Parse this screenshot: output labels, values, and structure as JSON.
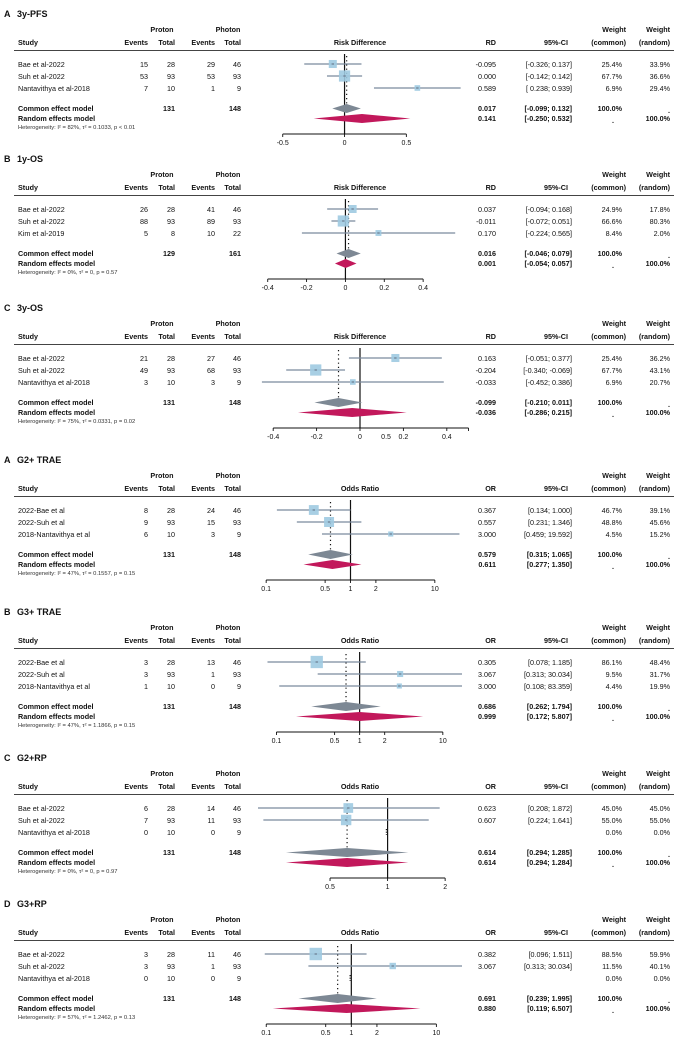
{
  "headers": {
    "study": "Study",
    "events": "Events",
    "total": "Total",
    "ci": "95%-CI",
    "weight": "Weight",
    "common": "(common)",
    "random": "(random)"
  },
  "chart_data": [
    {
      "type": "forest",
      "letter": "A",
      "title": "3y-PFS",
      "arm1": "Proton",
      "arm2": "Photon",
      "measure_label": "Risk Difference",
      "measure_short": "RD",
      "scale": "linear",
      "xlim": [
        -0.7,
        0.95
      ],
      "ref": 0,
      "ticks": [
        "-0.5",
        "0",
        "0.5"
      ],
      "tick_values": [
        -0.5,
        0,
        0.5
      ],
      "rows": [
        {
          "study": "Bae et al-2022",
          "e1": "15",
          "n1": "28",
          "e2": "29",
          "n2": "46",
          "est": -0.095,
          "lo": -0.326,
          "hi": 0.137,
          "est_txt": "-0.095",
          "ci_txt": "[-0.326; 0.137]",
          "wc": "25.4%",
          "wr": "33.9%",
          "w": 25.4
        },
        {
          "study": "Suh et al-2022",
          "e1": "53",
          "n1": "93",
          "e2": "53",
          "n2": "93",
          "est": 0.0,
          "lo": -0.142,
          "hi": 0.142,
          "est_txt": "0.000",
          "ci_txt": "[-0.142; 0.142]",
          "wc": "67.7%",
          "wr": "36.6%",
          "w": 67.7
        },
        {
          "study": "Nantavithya et al-2018",
          "e1": "7",
          "n1": "10",
          "e2": "1",
          "n2": "9",
          "est": 0.589,
          "lo": 0.238,
          "hi": 0.939,
          "est_txt": "0.589",
          "ci_txt": "[ 0.238; 0.939]",
          "wc": "6.9%",
          "wr": "29.4%",
          "w": 6.9
        }
      ],
      "common": {
        "label": "Common effect model",
        "n1": "131",
        "n2": "148",
        "est": 0.017,
        "lo": -0.099,
        "hi": 0.132,
        "est_txt": "0.017",
        "ci_txt": "[-0.099; 0.132]",
        "wc": "100.0%",
        "wr": "."
      },
      "random": {
        "label": "Random effects model",
        "est": 0.141,
        "lo": -0.25,
        "hi": 0.532,
        "est_txt": "0.141",
        "ci_txt": "[-0.250; 0.532]",
        "wc": ".",
        "wr": "100.0%"
      },
      "heterogeneity": "Heterogeneity: I² = 82%, τ² = 0.1033, p < 0.01"
    },
    {
      "type": "forest",
      "letter": "B",
      "title": "1y-OS",
      "arm1": "Proton",
      "arm2": "Photon",
      "measure_label": "Risk Difference",
      "measure_short": "RD",
      "scale": "linear",
      "xlim": [
        -0.45,
        0.6
      ],
      "ref": 0,
      "ticks": [
        "-0.4",
        "-0.2",
        "0",
        "0.2",
        "0.4"
      ],
      "tick_values": [
        -0.4,
        -0.2,
        0,
        0.2,
        0.4
      ],
      "rows": [
        {
          "study": "Bae et al-2022",
          "e1": "26",
          "n1": "28",
          "e2": "41",
          "n2": "46",
          "est": 0.037,
          "lo": -0.094,
          "hi": 0.168,
          "est_txt": "0.037",
          "ci_txt": "[-0.094; 0.168]",
          "wc": "24.9%",
          "wr": "17.8%",
          "w": 24.9
        },
        {
          "study": "Suh et al-2022",
          "e1": "88",
          "n1": "93",
          "e2": "89",
          "n2": "93",
          "est": -0.011,
          "lo": -0.072,
          "hi": 0.051,
          "est_txt": "-0.011",
          "ci_txt": "[-0.072; 0.051]",
          "wc": "66.6%",
          "wr": "80.3%",
          "w": 66.6
        },
        {
          "study": "Kim et al-2019",
          "e1": "5",
          "n1": "8",
          "e2": "10",
          "n2": "22",
          "est": 0.17,
          "lo": -0.224,
          "hi": 0.565,
          "est_txt": "0.170",
          "ci_txt": "[-0.224; 0.565]",
          "wc": "8.4%",
          "wr": "2.0%",
          "w": 8.4
        }
      ],
      "common": {
        "label": "Common effect model",
        "n1": "129",
        "n2": "161",
        "est": 0.016,
        "lo": -0.046,
        "hi": 0.079,
        "est_txt": "0.016",
        "ci_txt": "[-0.046; 0.079]",
        "wc": "100.0%",
        "wr": "."
      },
      "random": {
        "label": "Random effects model",
        "est": 0.001,
        "lo": -0.054,
        "hi": 0.057,
        "est_txt": "0.001",
        "ci_txt": "[-0.054; 0.057]",
        "wc": ".",
        "wr": "100.0%"
      },
      "heterogeneity": "Heterogeneity: I² = 0%, τ² = 0, p = 0.57"
    },
    {
      "type": "forest",
      "letter": "C",
      "title": "3y-OS",
      "arm1": "Proton",
      "arm2": "Photon",
      "measure_label": "Risk Difference",
      "measure_short": "RD",
      "scale": "linear",
      "xlim": [
        -0.47,
        0.47
      ],
      "ref": 0,
      "ticks": [
        "-0.4",
        "-0.2",
        "0",
        "0.2",
        "0.4",
        "0.5"
      ],
      "tick_values": [
        -0.4,
        -0.2,
        0,
        0.2,
        0.4,
        0.5
      ],
      "tick_label_skip": [
        5
      ],
      "extra_label": {
        "text": "0.5",
        "at": 0.12
      },
      "rows": [
        {
          "study": "Bae et al-2022",
          "e1": "21",
          "n1": "28",
          "e2": "27",
          "n2": "46",
          "est": 0.163,
          "lo": -0.051,
          "hi": 0.377,
          "est_txt": "0.163",
          "ci_txt": "[-0.051; 0.377]",
          "wc": "25.4%",
          "wr": "36.2%",
          "w": 25.4
        },
        {
          "study": "Suh et al-2022",
          "e1": "49",
          "n1": "93",
          "e2": "68",
          "n2": "93",
          "est": -0.204,
          "lo": -0.34,
          "hi": -0.069,
          "est_txt": "-0.204",
          "ci_txt": "[-0.340; -0.069]",
          "wc": "67.7%",
          "wr": "43.1%",
          "w": 67.7
        },
        {
          "study": "Nantavithya et al-2018",
          "e1": "3",
          "n1": "10",
          "e2": "3",
          "n2": "9",
          "est": -0.033,
          "lo": -0.452,
          "hi": 0.386,
          "est_txt": "-0.033",
          "ci_txt": "[-0.452; 0.386]",
          "wc": "6.9%",
          "wr": "20.7%",
          "w": 6.9
        }
      ],
      "common": {
        "label": "Common effect model",
        "n1": "131",
        "n2": "148",
        "est": -0.099,
        "lo": -0.21,
        "hi": 0.011,
        "est_txt": "-0.099",
        "ci_txt": "[-0.210; 0.011]",
        "wc": "100.0%",
        "wr": "."
      },
      "random": {
        "label": "Random effects model",
        "est": -0.036,
        "lo": -0.286,
        "hi": 0.215,
        "est_txt": "-0.036",
        "ci_txt": "[-0.286; 0.215]",
        "wc": ".",
        "wr": "100.0%"
      },
      "heterogeneity": "Heterogeneity: I² = 75%, τ² = 0.0331, p = 0.02"
    },
    {
      "type": "forest",
      "letter": "A",
      "title": "G2+ TRAE",
      "arm1": "Proton",
      "arm2": "Photon",
      "measure_label": "Odds Ratio",
      "measure_short": "OR",
      "scale": "log",
      "xlim": [
        0.08,
        21
      ],
      "ref": 1,
      "ticks": [
        "0.1",
        "0.5",
        "1",
        "2",
        "10"
      ],
      "tick_values": [
        0.1,
        0.5,
        1,
        2,
        10
      ],
      "rows": [
        {
          "study": "2022-Bae et al",
          "e1": "8",
          "n1": "28",
          "e2": "24",
          "n2": "46",
          "est": 0.367,
          "lo": 0.134,
          "hi": 1.0,
          "est_txt": "0.367",
          "ci_txt": "[0.134; 1.000]",
          "wc": "46.7%",
          "wr": "39.1%",
          "w": 46.7
        },
        {
          "study": "2022-Suh et al",
          "e1": "9",
          "n1": "93",
          "e2": "15",
          "n2": "93",
          "est": 0.557,
          "lo": 0.231,
          "hi": 1.346,
          "est_txt": "0.557",
          "ci_txt": "[0.231; 1.346]",
          "wc": "48.8%",
          "wr": "45.6%",
          "w": 48.8
        },
        {
          "study": "2018-Nantavithya et al",
          "e1": "6",
          "n1": "10",
          "e2": "3",
          "n2": "9",
          "est": 3.0,
          "lo": 0.459,
          "hi": 19.592,
          "est_txt": "3.000",
          "ci_txt": "[0.459; 19.592]",
          "wc": "4.5%",
          "wr": "15.2%",
          "w": 4.5
        }
      ],
      "common": {
        "label": "Common effect model",
        "n1": "131",
        "n2": "148",
        "est": 0.579,
        "lo": 0.315,
        "hi": 1.065,
        "est_txt": "0.579",
        "ci_txt": "[0.315; 1.065]",
        "wc": "100.0%",
        "wr": "."
      },
      "random": {
        "label": "Random effects model",
        "est": 0.611,
        "lo": 0.277,
        "hi": 1.35,
        "est_txt": "0.611",
        "ci_txt": "[0.277; 1.350]",
        "wc": ".",
        "wr": "100.0%"
      },
      "heterogeneity": "Heterogeneity: I² = 47%, τ² = 0.1557, p = 0.15"
    },
    {
      "type": "forest",
      "letter": "B",
      "title": "G3+ TRAE",
      "arm1": "Proton",
      "arm2": "Photon",
      "measure_label": "Odds Ratio",
      "measure_short": "OR",
      "scale": "log",
      "xlim": [
        0.06,
        17
      ],
      "ref": 1,
      "ticks": [
        "0.1",
        "0.5",
        "1",
        "2",
        "10"
      ],
      "tick_values": [
        0.1,
        0.5,
        1,
        2,
        10
      ],
      "rows": [
        {
          "study": "2022-Bae et al",
          "e1": "3",
          "n1": "28",
          "e2": "13",
          "n2": "46",
          "est": 0.305,
          "lo": 0.078,
          "hi": 1.185,
          "est_txt": "0.305",
          "ci_txt": "[0.078; 1.185]",
          "wc": "86.1%",
          "wr": "48.4%",
          "w": 86.1
        },
        {
          "study": "2022-Suh et al",
          "e1": "3",
          "n1": "93",
          "e2": "1",
          "n2": "93",
          "est": 3.067,
          "lo": 0.313,
          "hi": 30.034,
          "est_txt": "3.067",
          "ci_txt": "[0.313; 30.034]",
          "wc": "9.5%",
          "wr": "31.7%",
          "w": 9.5
        },
        {
          "study": "2018-Nantavithya et al",
          "e1": "1",
          "n1": "10",
          "e2": "0",
          "n2": "9",
          "est": 3.0,
          "lo": 0.108,
          "hi": 83.359,
          "est_txt": "3.000",
          "ci_txt": "[0.108; 83.359]",
          "wc": "4.4%",
          "wr": "19.9%",
          "w": 4.4
        }
      ],
      "common": {
        "label": "Common effect model",
        "n1": "131",
        "n2": "148",
        "est": 0.686,
        "lo": 0.262,
        "hi": 1.794,
        "est_txt": "0.686",
        "ci_txt": "[0.262; 1.794]",
        "wc": "100.0%",
        "wr": "."
      },
      "random": {
        "label": "Random effects model",
        "est": 0.999,
        "lo": 0.172,
        "hi": 5.807,
        "est_txt": "0.999",
        "ci_txt": "[0.172; 5.807]",
        "wc": ".",
        "wr": "100.0%"
      },
      "heterogeneity": "Heterogeneity: I² = 47%, τ² = 1.1866, p = 0.15"
    },
    {
      "type": "forest",
      "letter": "C",
      "title": "G2+RP",
      "arm1": "Proton",
      "arm2": "Photon",
      "measure_label": "Odds Ratio",
      "measure_short": "OR",
      "scale": "log",
      "xlim": [
        0.21,
        2.45
      ],
      "ref": 1,
      "ticks": [
        "0.5",
        "1",
        "2"
      ],
      "tick_values": [
        0.5,
        1,
        2
      ],
      "rows": [
        {
          "study": "Bae et al-2022",
          "e1": "6",
          "n1": "28",
          "e2": "14",
          "n2": "46",
          "est": 0.623,
          "lo": 0.208,
          "hi": 1.872,
          "est_txt": "0.623",
          "ci_txt": "[0.208; 1.872]",
          "wc": "45.0%",
          "wr": "45.0%",
          "w": 45.0
        },
        {
          "study": "Suh et al-2022",
          "e1": "7",
          "n1": "93",
          "e2": "11",
          "n2": "93",
          "est": 0.607,
          "lo": 0.224,
          "hi": 1.641,
          "est_txt": "0.607",
          "ci_txt": "[0.224; 1.641]",
          "wc": "55.0%",
          "wr": "55.0%",
          "w": 55.0
        },
        {
          "study": "Nantavithya et al-2018",
          "e1": "0",
          "n1": "10",
          "e2": "0",
          "n2": "9",
          "est": null,
          "lo": null,
          "hi": null,
          "est_txt": "",
          "ci_txt": "",
          "wc": "0.0%",
          "wr": "0.0%",
          "w": 0
        }
      ],
      "common": {
        "label": "Common effect model",
        "n1": "131",
        "n2": "148",
        "est": 0.614,
        "lo": 0.294,
        "hi": 1.285,
        "est_txt": "0.614",
        "ci_txt": "[0.294; 1.285]",
        "wc": "100.0%",
        "wr": "."
      },
      "random": {
        "label": "Random effects model",
        "est": 0.614,
        "lo": 0.294,
        "hi": 1.284,
        "est_txt": "0.614",
        "ci_txt": "[0.294; 1.284]",
        "wc": ".",
        "wr": "100.0%"
      },
      "heterogeneity": "Heterogeneity: I² = 0%, τ² = 0, p = 0.97"
    },
    {
      "type": "forest",
      "letter": "D",
      "title": "G3+RP",
      "arm1": "Proton",
      "arm2": "Photon",
      "measure_label": "Odds Ratio",
      "measure_short": "OR",
      "scale": "log",
      "xlim": [
        0.08,
        20
      ],
      "ref": 1,
      "ticks": [
        "0.1",
        "0.5",
        "1",
        "2",
        "10"
      ],
      "tick_values": [
        0.1,
        0.5,
        1,
        2,
        10
      ],
      "rows": [
        {
          "study": "Bae et al-2022",
          "e1": "3",
          "n1": "28",
          "e2": "11",
          "n2": "46",
          "est": 0.382,
          "lo": 0.096,
          "hi": 1.511,
          "est_txt": "0.382",
          "ci_txt": "[0.096; 1.511]",
          "wc": "88.5%",
          "wr": "59.9%",
          "w": 88.5
        },
        {
          "study": "Suh et al-2022",
          "e1": "3",
          "n1": "93",
          "e2": "1",
          "n2": "93",
          "est": 3.067,
          "lo": 0.313,
          "hi": 30.034,
          "est_txt": "3.067",
          "ci_txt": "[0.313; 30.034]",
          "wc": "11.5%",
          "wr": "40.1%",
          "w": 11.5
        },
        {
          "study": "Nantavithya et al-2018",
          "e1": "0",
          "n1": "10",
          "e2": "0",
          "n2": "9",
          "est": null,
          "lo": null,
          "hi": null,
          "est_txt": "",
          "ci_txt": "",
          "wc": "0.0%",
          "wr": "0.0%",
          "w": 0
        }
      ],
      "common": {
        "label": "Common effect model",
        "n1": "131",
        "n2": "148",
        "est": 0.691,
        "lo": 0.239,
        "hi": 1.995,
        "est_txt": "0.691",
        "ci_txt": "[0.239; 1.995]",
        "wc": "100.0%",
        "wr": "."
      },
      "random": {
        "label": "Random effects model",
        "est": 0.88,
        "lo": 0.119,
        "hi": 6.507,
        "est_txt": "0.880",
        "ci_txt": "[0.119; 6.507]",
        "wc": ".",
        "wr": "100.0%"
      },
      "heterogeneity": "Heterogeneity: I² = 57%, τ² = 1.2462, p = 0.13"
    }
  ],
  "colors": {
    "square": "#9ecae1",
    "ci_line": "#7a8a9e",
    "common_diamond": "#7d8894",
    "random_diamond": "#c2185b",
    "axis": "#111111",
    "het": "#333333"
  }
}
